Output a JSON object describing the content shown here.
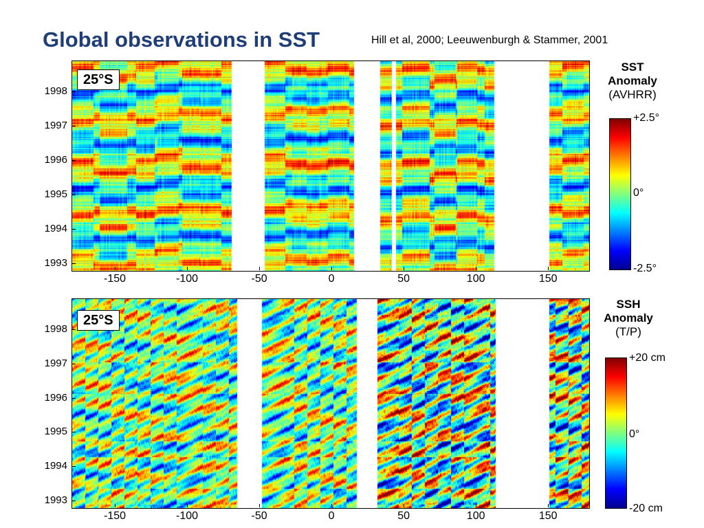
{
  "header": {
    "title": "Global observations in SST",
    "citation": "Hill et al, 2000; Leeuwenburgh & Stammer, 2001"
  },
  "colors": {
    "title": "#1f3e78",
    "colormap": [
      "#00008f",
      "#0000ff",
      "#00ffff",
      "#ffff00",
      "#ff0000",
      "#800000"
    ]
  },
  "chart_data": [
    {
      "type": "heatmap",
      "title": "",
      "panel_label": "25°S",
      "x_ticks": [
        "-150",
        "-100",
        "-50",
        "0",
        "50",
        "100",
        "150"
      ],
      "x_tick_values": [
        -150,
        -100,
        -50,
        0,
        50,
        100,
        150
      ],
      "y_ticks": [
        "1998",
        "1997",
        "1996",
        "1995",
        "1994",
        "1993"
      ],
      "y_tick_values": [
        1998,
        1997,
        1996,
        1995,
        1994,
        1993
      ],
      "xlim": [
        -180,
        178
      ],
      "ylim": [
        1992.8,
        1998.9
      ],
      "land_gaps": [
        [
          -70,
          -47
        ],
        [
          15,
          33
        ],
        [
          41,
          44
        ],
        [
          112,
          150
        ]
      ],
      "colorbar": {
        "title_line1": "SST",
        "title_line2": "Anomaly",
        "title_line3": "(AVHRR)",
        "max_label": "+2.5°",
        "mid_label": "0°",
        "min_label": "-2.5°",
        "range": [
          -2.5,
          2.5
        ]
      }
    },
    {
      "type": "heatmap",
      "title": "",
      "panel_label": "25°S",
      "x_ticks": [
        "-150",
        "-100",
        "-50",
        "0",
        "50",
        "100",
        "150"
      ],
      "x_tick_values": [
        -150,
        -100,
        -50,
        0,
        50,
        100,
        150
      ],
      "y_ticks": [
        "1998",
        "1997",
        "1996",
        "1995",
        "1994",
        "1993"
      ],
      "y_tick_values": [
        1998,
        1997,
        1996,
        1995,
        1994,
        1993
      ],
      "xlim": [
        -180,
        178
      ],
      "ylim": [
        1992.8,
        1998.9
      ],
      "land_gaps": [
        [
          -66,
          -49
        ],
        [
          17,
          31
        ],
        [
          113,
          150
        ]
      ],
      "colorbar": {
        "title_line1": "SSH",
        "title_line2": "Anomaly",
        "title_line3": "(T/P)",
        "max_label": "+20 cm",
        "mid_label": "0°",
        "min_label": "-20 cm",
        "range": [
          -20,
          20
        ]
      }
    }
  ]
}
